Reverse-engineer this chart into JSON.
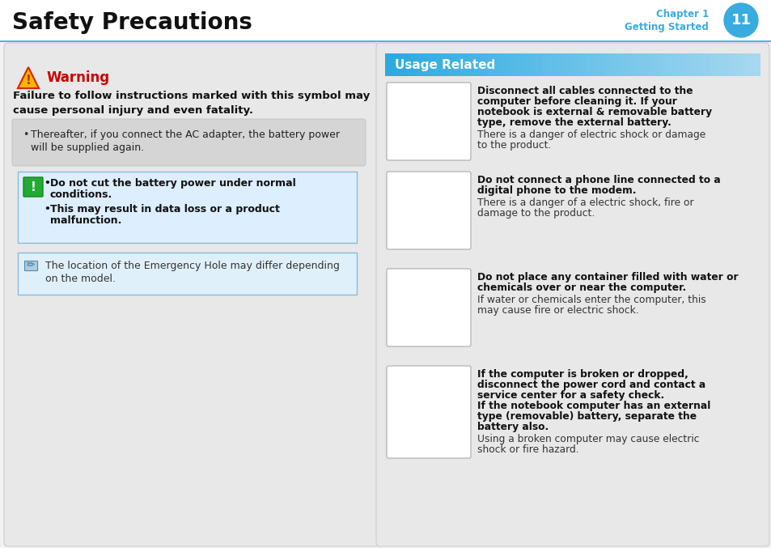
{
  "title": "Safety Precautions",
  "chapter_label": "Chapter 1",
  "chapter_sub": "Getting Started",
  "chapter_num": "11",
  "bg_color": "#f2f2f2",
  "header_bg": "#ffffff",
  "header_line_color": "#4db3e6",
  "chapter_circle_color": "#3aabdf",
  "chapter_text_color": "#3aabdf",
  "warning_color": "#cc0000",
  "warning_title": "Warning",
  "warning_desc": "Failure to follow instructions marked with this symbol may\ncause personal injury and even fatality.",
  "left_panel_bg": "#e8e8e8",
  "bullet1_line1": "Thereafter, if you connect the AC adapter, the battery power",
  "bullet1_line2": "will be supplied again.",
  "caution_bg": "#ddeeff",
  "caution_border": "#88bbdd",
  "caution_line1": "Do not cut the battery power under normal",
  "caution_line2": "conditions.",
  "caution_line3": "This may result in data loss or a product",
  "caution_line4": "malfunction.",
  "note_bg": "#e0f0fa",
  "note_border": "#88bbdd",
  "note_line1": "The location of the Emergency Hole may differ depending",
  "note_line2": "on the model.",
  "usage_header_color1": "#2aaae0",
  "usage_header_color2": "#a0d8f0",
  "usage_header_text": "Usage Related",
  "right_panel_bg": "#e8e8e8",
  "items": [
    {
      "bold1": "Disconnect all cables connected to the",
      "bold2": "computer before cleaning it. If your",
      "bold3": "notebook is external & removable battery",
      "bold4": "type, remove the external battery.",
      "bold5": "",
      "bold6": "",
      "norm1": "There is a danger of electric shock or damage",
      "norm2": "to the product.",
      "norm3": ""
    },
    {
      "bold1": "Do not connect a phone line connected to a",
      "bold2": "digital phone to the modem.",
      "bold3": "",
      "bold4": "",
      "bold5": "",
      "bold6": "",
      "norm1": "There is a danger of a electric shock, fire or",
      "norm2": "damage to the product.",
      "norm3": ""
    },
    {
      "bold1": "Do not place any container filled with water or",
      "bold2": "chemicals over or near the computer.",
      "bold3": "",
      "bold4": "",
      "bold5": "",
      "bold6": "",
      "norm1": "If water or chemicals enter the computer, this",
      "norm2": "may cause fire or electric shock.",
      "norm3": ""
    },
    {
      "bold1": "If the computer is broken or dropped,",
      "bold2": "disconnect the power cord and contact a",
      "bold3": "service center for a safety check.",
      "bold4": "If the notebook computer has an external",
      "bold5": "type (removable) battery, separate the",
      "bold6": "battery also.",
      "norm1": "Using a broken computer may cause electric",
      "norm2": "shock or fire hazard.",
      "norm3": ""
    }
  ]
}
